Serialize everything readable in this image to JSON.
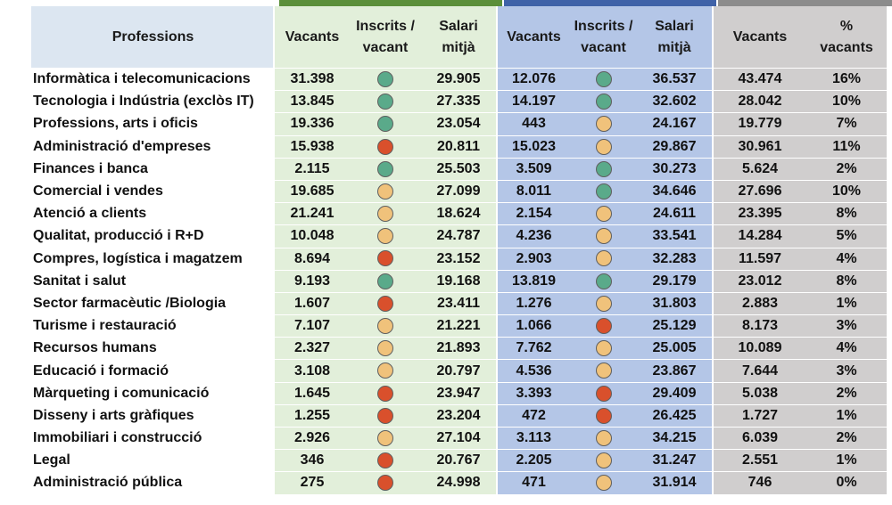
{
  "headers": {
    "professions": "Professions",
    "group1": [
      "Vacants",
      "Inscrits /\nvacant",
      "Salari\nmitjà"
    ],
    "group2": [
      "Vacants",
      "Inscrits /\nvacant",
      "Salari\nmitjà"
    ],
    "group3": [
      "Vacants",
      "%\nvacants"
    ]
  },
  "colors": {
    "green": "#5aaa8a",
    "yellow": "#f0c27b",
    "red": "#d9502c"
  },
  "rows": [
    {
      "name": "Informàtica i telecomunicacions",
      "v1": "31.398",
      "d1": "green",
      "s1": "29.905",
      "v2": "12.076",
      "d2": "green",
      "s2": "36.537",
      "v3": "43.474",
      "p": "16%"
    },
    {
      "name": "Tecnologia i Indústria (exclòs IT)",
      "v1": "13.845",
      "d1": "green",
      "s1": "27.335",
      "v2": "14.197",
      "d2": "green",
      "s2": "32.602",
      "v3": "28.042",
      "p": "10%"
    },
    {
      "name": "Professions, arts i oficis",
      "v1": "19.336",
      "d1": "green",
      "s1": "23.054",
      "v2": "443",
      "d2": "yellow",
      "s2": "24.167",
      "v3": "19.779",
      "p": "7%"
    },
    {
      "name": "Administració d'empreses",
      "v1": "15.938",
      "d1": "red",
      "s1": "20.811",
      "v2": "15.023",
      "d2": "yellow",
      "s2": "29.867",
      "v3": "30.961",
      "p": "11%"
    },
    {
      "name": "Finances i banca",
      "v1": "2.115",
      "d1": "green",
      "s1": "25.503",
      "v2": "3.509",
      "d2": "green",
      "s2": "30.273",
      "v3": "5.624",
      "p": "2%"
    },
    {
      "name": "Comercial i vendes",
      "v1": "19.685",
      "d1": "yellow",
      "s1": "27.099",
      "v2": "8.011",
      "d2": "green",
      "s2": "34.646",
      "v3": "27.696",
      "p": "10%"
    },
    {
      "name": "Atenció a clients",
      "v1": "21.241",
      "d1": "yellow",
      "s1": "18.624",
      "v2": "2.154",
      "d2": "yellow",
      "s2": "24.611",
      "v3": "23.395",
      "p": "8%"
    },
    {
      "name": "Qualitat, producció i R+D",
      "v1": "10.048",
      "d1": "yellow",
      "s1": "24.787",
      "v2": "4.236",
      "d2": "yellow",
      "s2": "33.541",
      "v3": "14.284",
      "p": "5%"
    },
    {
      "name": "Compres, logística i magatzem",
      "v1": "8.694",
      "d1": "red",
      "s1": "23.152",
      "v2": "2.903",
      "d2": "yellow",
      "s2": "32.283",
      "v3": "11.597",
      "p": "4%"
    },
    {
      "name": "Sanitat i salut",
      "v1": "9.193",
      "d1": "green",
      "s1": "19.168",
      "v2": "13.819",
      "d2": "green",
      "s2": "29.179",
      "v3": "23.012",
      "p": "8%"
    },
    {
      "name": "Sector farmacèutic /Biologia",
      "v1": "1.607",
      "d1": "red",
      "s1": "23.411",
      "v2": "1.276",
      "d2": "yellow",
      "s2": "31.803",
      "v3": "2.883",
      "p": "1%"
    },
    {
      "name": "Turisme i restauració",
      "v1": "7.107",
      "d1": "yellow",
      "s1": "21.221",
      "v2": "1.066",
      "d2": "red",
      "s2": "25.129",
      "v3": "8.173",
      "p": "3%"
    },
    {
      "name": "Recursos humans",
      "v1": "2.327",
      "d1": "yellow",
      "s1": "21.893",
      "v2": "7.762",
      "d2": "yellow",
      "s2": "25.005",
      "v3": "10.089",
      "p": "4%"
    },
    {
      "name": "Educació i formació",
      "v1": "3.108",
      "d1": "yellow",
      "s1": "20.797",
      "v2": "4.536",
      "d2": "yellow",
      "s2": "23.867",
      "v3": "7.644",
      "p": "3%"
    },
    {
      "name": "Màrqueting i comunicació",
      "v1": "1.645",
      "d1": "red",
      "s1": "23.947",
      "v2": "3.393",
      "d2": "red",
      "s2": "29.409",
      "v3": "5.038",
      "p": "2%"
    },
    {
      "name": "Disseny i arts gràfiques",
      "v1": "1.255",
      "d1": "red",
      "s1": "23.204",
      "v2": "472",
      "d2": "red",
      "s2": "26.425",
      "v3": "1.727",
      "p": "1%"
    },
    {
      "name": "Immobiliari i construcció",
      "v1": "2.926",
      "d1": "yellow",
      "s1": "27.104",
      "v2": "3.113",
      "d2": "yellow",
      "s2": "34.215",
      "v3": "6.039",
      "p": "2%"
    },
    {
      "name": "Legal",
      "v1": "346",
      "d1": "red",
      "s1": "20.767",
      "v2": "2.205",
      "d2": "yellow",
      "s2": "31.247",
      "v3": "2.551",
      "p": "1%"
    },
    {
      "name": "Administració pública",
      "v1": "275",
      "d1": "red",
      "s1": "24.998",
      "v2": "471",
      "d2": "yellow",
      "s2": "31.914",
      "v3": "746",
      "p": "0%"
    }
  ]
}
